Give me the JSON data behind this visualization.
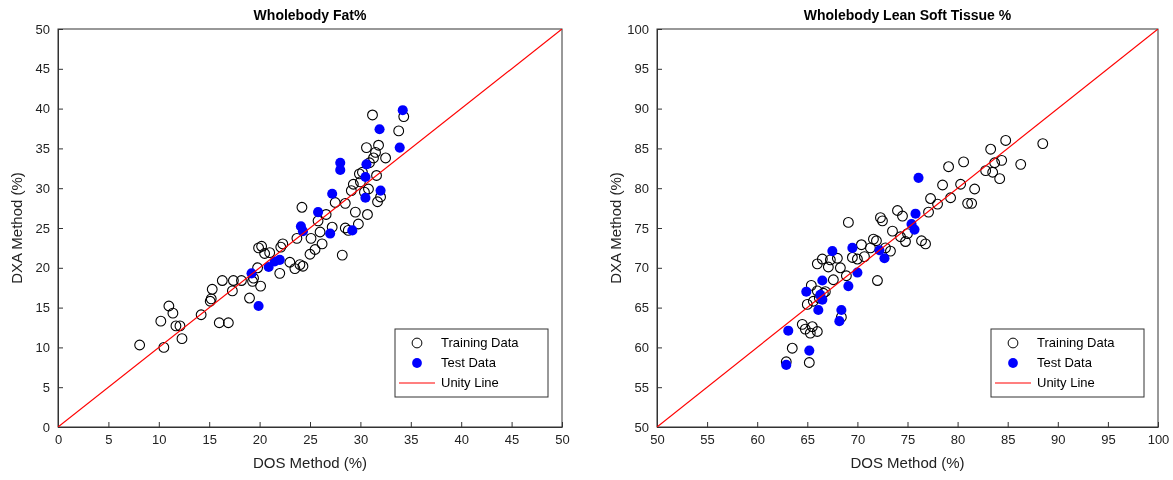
{
  "chart_data": [
    {
      "type": "scatter",
      "title": "Wholebody Fat%",
      "xlabel": "DOS Method (%)",
      "ylabel": "DXA Method (%)",
      "xlim": [
        0,
        50
      ],
      "ylim": [
        0,
        50
      ],
      "xticks": [
        0,
        5,
        10,
        15,
        20,
        25,
        30,
        35,
        40,
        45,
        50
      ],
      "yticks": [
        0,
        5,
        10,
        15,
        20,
        25,
        30,
        35,
        40,
        45,
        50
      ],
      "grid": false,
      "legend": "bottom right",
      "series": [
        {
          "name": "Training Data",
          "marker": "circle",
          "color": "#000000",
          "x": [
            8.1,
            10.2,
            10.5,
            11.0,
            11.4,
            11.7,
            12.1,
            12.3,
            14.2,
            15.1,
            15.2,
            15.3,
            16.0,
            16.3,
            16.9,
            17.3,
            17.4,
            18.2,
            19.0,
            19.3,
            19.4,
            19.8,
            19.9,
            20.2,
            20.5,
            20.1,
            21.0,
            22.1,
            22.3,
            22.0,
            23.0,
            23.5,
            23.7,
            24.0,
            24.2,
            24.3,
            25.0,
            25.1,
            25.5,
            25.8,
            26.0,
            26.2,
            26.6,
            27.2,
            27.5,
            28.2,
            28.5,
            28.5,
            28.8,
            29.1,
            29.3,
            29.5,
            29.8,
            29.9,
            30.2,
            30.4,
            30.6,
            30.7,
            30.9,
            31.2,
            31.3,
            31.5,
            31.6,
            31.7,
            31.8,
            32.0,
            32.5,
            33.8,
            34.3,
            30.0,
            30.8
          ],
          "values": [
            10.3,
            13.3,
            10.0,
            15.2,
            14.3,
            12.7,
            12.7,
            11.1,
            14.1,
            15.8,
            16.1,
            17.3,
            13.1,
            18.4,
            13.1,
            17.1,
            18.4,
            18.4,
            16.2,
            18.3,
            18.7,
            20.0,
            22.5,
            22.7,
            21.8,
            17.7,
            21.9,
            22.6,
            23.0,
            19.3,
            20.7,
            19.9,
            23.7,
            20.4,
            27.6,
            20.2,
            21.7,
            23.7,
            22.3,
            25.9,
            24.5,
            23.0,
            26.7,
            25.1,
            28.2,
            21.6,
            28.1,
            25.0,
            24.7,
            29.7,
            30.5,
            27.0,
            25.5,
            31.8,
            32.0,
            29.5,
            35.1,
            26.7,
            33.2,
            39.2,
            33.8,
            34.5,
            31.6,
            28.3,
            35.4,
            28.9,
            33.8,
            37.2,
            39.0,
            30.8,
            29.9
          ]
        },
        {
          "name": "Test Data",
          "marker": "circle",
          "color": "#0000ff",
          "x": [
            34.2,
            31.9,
            33.9,
            28.0,
            28.0,
            30.6,
            30.5,
            32.0,
            30.5,
            27.2,
            25.8,
            24.1,
            27.0,
            29.2,
            24.3,
            22.0,
            21.5,
            20.9,
            19.2,
            19.9
          ],
          "values": [
            39.8,
            37.4,
            35.1,
            33.2,
            32.3,
            33.0,
            31.4,
            29.7,
            28.8,
            29.3,
            27.0,
            25.2,
            24.3,
            24.7,
            24.6,
            21.0,
            20.8,
            20.1,
            19.3,
            15.2
          ]
        },
        {
          "name": "Unity Line",
          "type": "line",
          "marker": "none",
          "color": "#ff0000",
          "x": [
            0,
            50
          ],
          "values": [
            0,
            50
          ]
        }
      ]
    },
    {
      "type": "scatter",
      "title": "Wholebody Lean Soft Tissue %",
      "xlabel": "DOS Method (%)",
      "ylabel": "DXA Method (%)",
      "xlim": [
        50,
        100
      ],
      "ylim": [
        50,
        100
      ],
      "xticks": [
        50,
        55,
        60,
        65,
        70,
        75,
        80,
        85,
        90,
        95,
        100
      ],
      "yticks": [
        50,
        55,
        60,
        65,
        70,
        75,
        80,
        85,
        90,
        95,
        100
      ],
      "grid": false,
      "legend": "bottom right",
      "series": [
        {
          "name": "Training Data",
          "marker": "circle",
          "color": "#000000",
          "x": [
            62.9,
            63.5,
            65.2,
            64.5,
            64.8,
            65.3,
            65.5,
            66.0,
            65.0,
            65.6,
            65.4,
            66.0,
            66.2,
            66.6,
            66.8,
            67.1,
            67.6,
            66.0,
            66.5,
            67.3,
            68.0,
            68.3,
            68.9,
            69.1,
            69.5,
            70.0,
            70.4,
            70.7,
            71.3,
            71.6,
            71.9,
            72.0,
            72.3,
            72.5,
            72.8,
            73.3,
            73.5,
            74.0,
            74.5,
            74.3,
            74.8,
            75.0,
            76.4,
            76.8,
            77.1,
            77.3,
            78.0,
            78.5,
            79.1,
            79.3,
            80.3,
            80.6,
            81.0,
            81.4,
            81.7,
            82.8,
            83.3,
            83.5,
            83.7,
            84.2,
            84.8,
            84.4,
            86.3,
            88.5,
            68.4
          ],
          "values": [
            58.2,
            59.9,
            58.1,
            62.9,
            62.3,
            61.8,
            62.6,
            62.0,
            65.4,
            65.8,
            67.8,
            67.1,
            66.2,
            66.8,
            67.0,
            70.1,
            68.5,
            70.5,
            71.1,
            71.0,
            71.2,
            70.0,
            69.0,
            75.7,
            71.3,
            71.1,
            72.9,
            71.4,
            72.5,
            73.6,
            73.4,
            68.4,
            76.3,
            75.9,
            72.5,
            72.1,
            74.6,
            77.2,
            76.5,
            73.9,
            73.3,
            74.3,
            73.4,
            73.0,
            77.0,
            78.7,
            78.0,
            80.4,
            82.7,
            78.8,
            80.5,
            83.3,
            78.1,
            78.1,
            79.9,
            82.2,
            84.9,
            82.0,
            83.2,
            81.2,
            86.0,
            83.5,
            83.0,
            85.6,
            63.8
          ]
        },
        {
          "name": "Test Data",
          "marker": "circle",
          "color": "#0000ff",
          "x": [
            76.1,
            75.8,
            75.4,
            75.7,
            72.2,
            72.7,
            69.5,
            67.5,
            66.5,
            70.0,
            69.1,
            64.9,
            66.3,
            66.1,
            68.4,
            68.2,
            63.1,
            65.2,
            62.9,
            66.5
          ],
          "values": [
            81.3,
            76.8,
            75.5,
            74.8,
            72.2,
            71.2,
            72.5,
            72.1,
            68.4,
            69.4,
            67.7,
            67.0,
            66.6,
            64.7,
            64.7,
            63.3,
            62.1,
            59.6,
            57.8,
            66.0
          ]
        },
        {
          "name": "Unity Line",
          "type": "line",
          "marker": "none",
          "color": "#ff0000",
          "x": [
            50,
            100
          ],
          "values": [
            50,
            100
          ]
        }
      ]
    }
  ]
}
